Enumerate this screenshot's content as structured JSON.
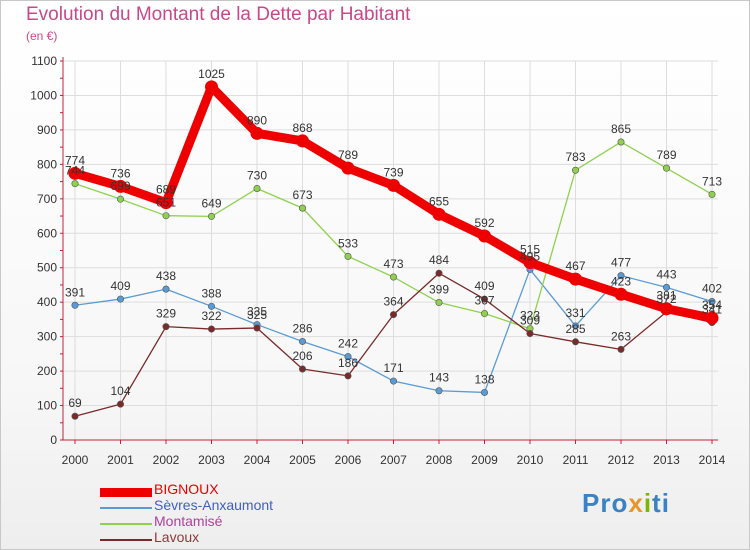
{
  "title": "Evolution du Montant de la Dette par Habitant",
  "subtitle": "(en €)",
  "logo": {
    "text_a": "Pro",
    "text_b": "x",
    "text_c": "i",
    "text_d": "ti"
  },
  "colors": {
    "title": "#c8488a",
    "axis": "#c8203a",
    "grid": "#dddddd"
  },
  "chart_data": {
    "type": "line",
    "title": "Evolution du Montant de la Dette par Habitant",
    "ylabel": "(en €)",
    "xlabel": "",
    "ylim": [
      0,
      1100
    ],
    "yticks": [
      0,
      100,
      200,
      300,
      400,
      500,
      600,
      700,
      800,
      900,
      1000,
      1100
    ],
    "grid": true,
    "legend_position": "bottom-left",
    "categories": [
      "2000",
      "2001",
      "2002",
      "2003",
      "2004",
      "2005",
      "2006",
      "2007",
      "2008",
      "2009",
      "2010",
      "2011",
      "2012",
      "2013",
      "2014"
    ],
    "series": [
      {
        "name": "BIGNOUX",
        "color": "#ee0000",
        "emphasis": true,
        "values": [
          774,
          736,
          689,
          1025,
          890,
          868,
          789,
          739,
          655,
          592,
          515,
          467,
          423,
          381,
          354
        ]
      },
      {
        "name": "Sèvres-Anxaumont",
        "color": "#5b9bd5",
        "emphasis": false,
        "values": [
          391,
          409,
          438,
          388,
          335,
          286,
          242,
          171,
          143,
          138,
          495,
          331,
          477,
          443,
          402
        ]
      },
      {
        "name": "Montamisé",
        "color": "#8fd14f",
        "emphasis": false,
        "values": [
          744,
          699,
          651,
          649,
          730,
          673,
          533,
          473,
          399,
          367,
          323,
          783,
          865,
          789,
          713
        ]
      },
      {
        "name": "Lavoux",
        "color": "#7a2a2a",
        "emphasis": false,
        "values": [
          69,
          104,
          329,
          322,
          325,
          206,
          186,
          364,
          484,
          409,
          309,
          285,
          263,
          372,
          341
        ]
      }
    ]
  }
}
